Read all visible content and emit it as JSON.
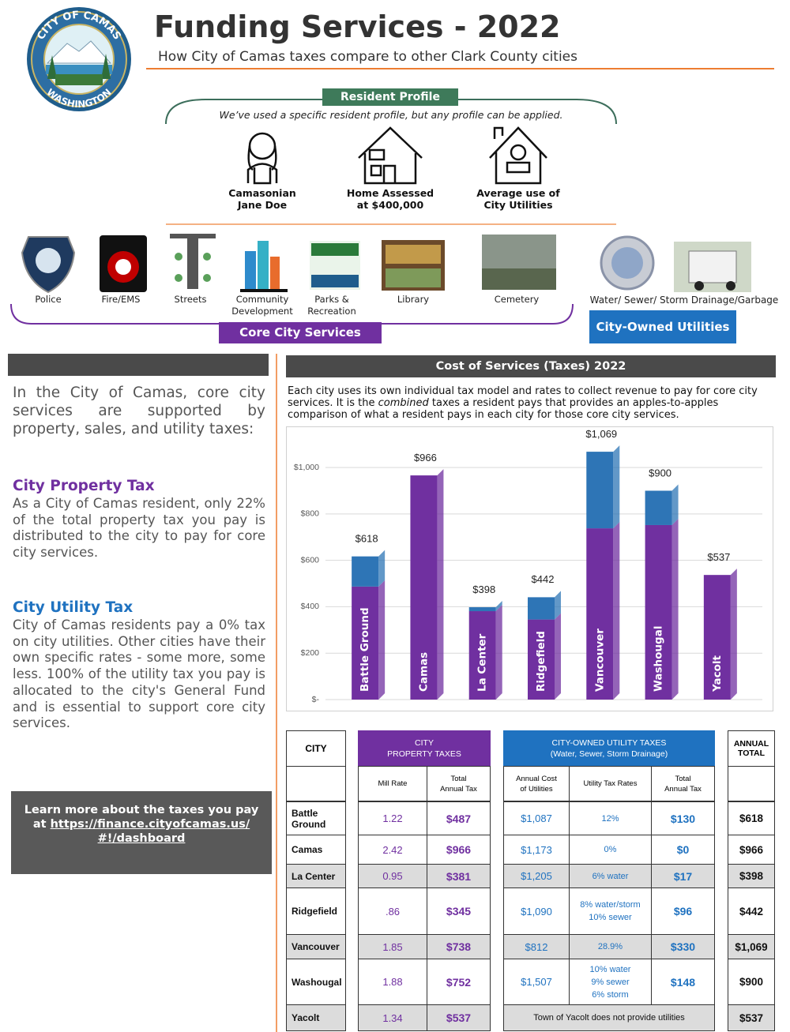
{
  "header": {
    "title": "Funding Services - 2022",
    "subtitle": "How City of Camas taxes compare to other Clark County cities",
    "logo_top": "CITY OF CAMAS",
    "logo_bottom": "WASHINGTON"
  },
  "resident_profile": {
    "title": "Resident Profile",
    "note": "We’ve used a specific resident profile, but any profile can be applied.",
    "items": [
      "Camasonian\nJane Doe",
      "Home Assessed\nat $400,000",
      "Average use of\nCity Utilities"
    ]
  },
  "services": {
    "items": [
      "Police",
      "Fire/EMS",
      "Streets",
      "Community\nDevelopment",
      "Parks &\nRecreation",
      "Library",
      "Cemetery"
    ],
    "utilities": "Water/ Sewer/ Storm Drainage/Garbage",
    "core_label": "Core City Services",
    "utilities_label": "City-Owned Utilities"
  },
  "sidebar": {
    "intro": "In the City of Camas, core city services are supported by property, sales, and utility taxes:",
    "property_title": "City Property Tax",
    "property_text": "As a City of Camas resident, only 22% of the total property tax you pay is distributed to the city to pay for core city services.",
    "utility_title": "City Utility Tax",
    "utility_text": "City of Camas residents pay a 0% tax on city utilities.  Other cities have their own specific rates - some more, some less. 100% of the utility tax you pay is allocated to the city's General Fund and is essential to support core city services.",
    "learn_more": "Learn more about the taxes you pay at",
    "link": "https://finance.cityofcamas.us/#!/dashboard"
  },
  "chart_data": {
    "type": "bar",
    "stacked": true,
    "title": "Cost of Services (Taxes) 2022",
    "description": [
      "Each city uses its own individual tax model and rates to collect revenue to pay for core city services.  It is the ",
      "combined",
      " taxes a resident pays that provides an apples-to-apples comparison of what a resident pays in each city for those core city services."
    ],
    "categories": [
      "Battle Ground",
      "Camas",
      "La Center",
      "Ridgefield",
      "Vancouver",
      "Washougal",
      "Yacolt"
    ],
    "series": [
      {
        "color": "#7030a0",
        "values": [
          487,
          966,
          381,
          345,
          738,
          752,
          537
        ]
      },
      {
        "color": "#2e75b6",
        "values": [
          130,
          0,
          17,
          96,
          330,
          148,
          0
        ]
      }
    ],
    "totals": [
      618,
      966,
      398,
      442,
      1069,
      900,
      537
    ],
    "total_labels": [
      "$618",
      "$966",
      "$398",
      "$442",
      "$1,069",
      "$900",
      "$537"
    ],
    "ylim": [
      0,
      1150
    ],
    "yticks": [
      {
        "value": 0,
        "label": "$-"
      },
      {
        "value": 200,
        "label": "$200"
      },
      {
        "value": 400,
        "label": "$400"
      },
      {
        "value": 600,
        "label": "$600"
      },
      {
        "value": 800,
        "label": "$800"
      },
      {
        "value": 1000,
        "label": "$1,000"
      }
    ],
    "grid": true
  },
  "table": {
    "headers": {
      "city": "CITY",
      "property": "CITY\nPROPERTY TAXES",
      "utility": "CITY-OWNED UTILITY TAXES\n(Water, Sewer, Storm Drainage)",
      "total": "ANNUAL\nTOTAL",
      "mill_rate": "Mill Rate",
      "property_total": "Total\nAnnual Tax",
      "annual_cost": "Annual Cost\nof Utilities",
      "utility_rates": "Utility Tax Rates",
      "utility_total": "Total\nAnnual Tax"
    },
    "rows": [
      {
        "city": "Battle\nGround",
        "mill_rate": "1.22",
        "property_tax": "$487",
        "utility_cost": "$1,087",
        "utility_rate": "12%",
        "utility_tax": "$130",
        "total": "$618"
      },
      {
        "city": "Camas",
        "mill_rate": "2.42",
        "property_tax": "$966",
        "utility_cost": "$1,173",
        "utility_rate": "0%",
        "utility_tax": "$0",
        "total": "$966"
      },
      {
        "city": "La Center",
        "mill_rate": "0.95",
        "property_tax": "$381",
        "utility_cost": "$1,205",
        "utility_rate": "6% water",
        "utility_tax": "$17",
        "total": "$398"
      },
      {
        "city": "Ridgefield",
        "mill_rate": ".86",
        "property_tax": "$345",
        "utility_cost": "$1,090",
        "utility_rate": "8% water/storm\n10% sewer",
        "utility_tax": "$96",
        "total": "$442"
      },
      {
        "city": "Vancouver",
        "mill_rate": "1.85",
        "property_tax": "$738",
        "utility_cost": "$812",
        "utility_rate": "28.9%",
        "utility_tax": "$330",
        "total": "$1,069"
      },
      {
        "city": "Washougal",
        "mill_rate": "1.88",
        "property_tax": "$752",
        "utility_cost": "$1,507",
        "utility_rate": "10% water\n9% sewer\n6% storm",
        "utility_tax": "$148",
        "total": "$900"
      },
      {
        "city": "Yacolt",
        "mill_rate": "1.34",
        "property_tax": "$537",
        "note": "Town of Yacolt does not provide utilities",
        "total": "$537"
      }
    ]
  }
}
